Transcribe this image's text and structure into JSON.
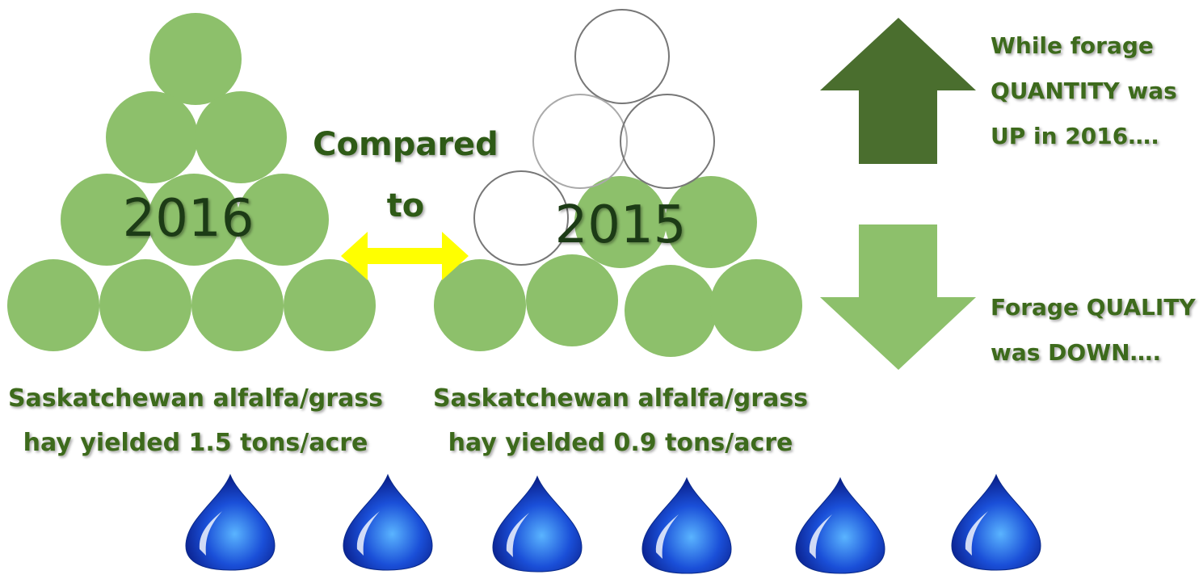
{
  "left_year": "2016",
  "right_year": "2015",
  "comparison": [
    "Compared",
    "to"
  ],
  "left_caption": [
    "Saskatchewan alfalfa/grass",
    "hay yielded 1.5 tons/acre"
  ],
  "right_caption": [
    "Saskatchewan alfalfa/grass",
    "hay yielded 0.9 tons/acre"
  ],
  "up_text": [
    "While forage",
    "QUANTITY was",
    "UP in 2016…."
  ],
  "down_text": [
    "Forage QUALITY",
    "was DOWN…."
  ]
}
